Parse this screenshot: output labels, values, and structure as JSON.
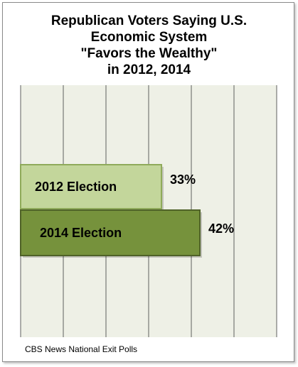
{
  "chart_data": {
    "type": "bar",
    "orientation": "horizontal",
    "title_lines": [
      "Republican Voters Saying U.S.",
      "Economic System",
      "\"Favors the Wealthy\"",
      "in 2012, 2014"
    ],
    "categories": [
      "2012 Election",
      "2014 Election"
    ],
    "values": [
      33,
      42
    ],
    "value_labels": [
      "33%",
      "42%"
    ],
    "xlim": [
      0,
      60
    ],
    "grid": true,
    "source": "CBS News National Exit Polls",
    "colors": {
      "plot_background": "#eef0e6",
      "gridline": "#5f5f5f",
      "bar_2012_fill": "#c3d69b",
      "bar_2012_border": "#8faa5a",
      "bar_2014_fill": "#76923c",
      "bar_2014_border": "#4f6228"
    }
  }
}
